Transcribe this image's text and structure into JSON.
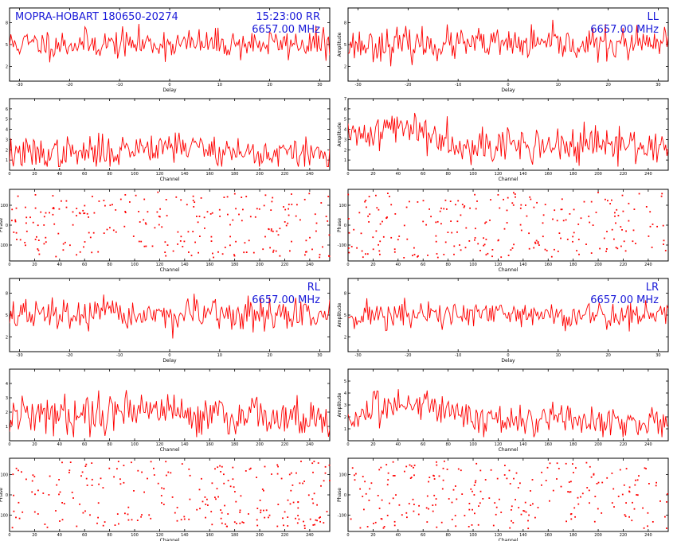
{
  "colors": {
    "trace": "#ff0000",
    "text_blue": "#1a1ad8",
    "frame": "#000000",
    "background": "#ffffff"
  },
  "chart_data": [
    {
      "id": "rr-delay",
      "type": "line",
      "pol": "RR",
      "kind": "delay",
      "title_left": "MOPRA-HOBART 180650-20274",
      "time": "15:23:00",
      "freq": "6657.00 MHz",
      "xlabel": "Delay",
      "ylabel": "",
      "xlim": [
        -32,
        32
      ],
      "ylim": [
        0,
        10
      ],
      "yticks": [
        2,
        5,
        8
      ],
      "xticks": [
        -30,
        -20,
        -10,
        0,
        10,
        20,
        30
      ],
      "x": [
        -32,
        32
      ],
      "y": [
        5.1,
        4.9
      ],
      "n_points": 256,
      "baseline": 5.1,
      "noise": 1.0,
      "seed": 11
    },
    {
      "id": "ll-delay",
      "type": "line",
      "pol": "LL",
      "kind": "delay",
      "title_left": "",
      "time": "",
      "freq": "6657.00 MHz",
      "xlabel": "Delay",
      "ylabel": "Amplitude",
      "xlim": [
        -32,
        32
      ],
      "ylim": [
        0,
        10
      ],
      "yticks": [
        2,
        5,
        8
      ],
      "xticks": [
        -30,
        -20,
        -10,
        0,
        10,
        20,
        30
      ],
      "x": [
        -32,
        32
      ],
      "y": [
        5.0,
        5.2
      ],
      "n_points": 256,
      "baseline": 5.0,
      "noise": 1.1,
      "seed": 23
    },
    {
      "id": "rr-channel",
      "type": "line",
      "pol": "RR",
      "kind": "channel",
      "xlabel": "Channel",
      "ylabel": "",
      "xlim": [
        0,
        256
      ],
      "ylim": [
        0,
        7
      ],
      "yticks": [
        1,
        2,
        3,
        4,
        5,
        6
      ],
      "xticks": [
        0,
        20,
        40,
        60,
        80,
        100,
        120,
        140,
        160,
        180,
        200,
        220,
        240
      ],
      "x": [
        0,
        256
      ],
      "y": [
        1.6,
        1.5
      ],
      "n_points": 256,
      "baseline": 1.6,
      "noise": 0.8,
      "bump_at": 128,
      "bump_height": 0.9,
      "seed": 37
    },
    {
      "id": "ll-channel",
      "type": "line",
      "pol": "LL",
      "kind": "channel",
      "xlabel": "Channel",
      "ylabel": "Amplitude",
      "xlim": [
        0,
        256
      ],
      "ylim": [
        0,
        7
      ],
      "yticks": [
        1,
        2,
        3,
        4,
        5,
        6,
        7
      ],
      "xticks": [
        0,
        20,
        40,
        60,
        80,
        100,
        120,
        140,
        160,
        180,
        200,
        220,
        240
      ],
      "x": [
        0,
        256
      ],
      "y": [
        3.2,
        2.0
      ],
      "n_points": 256,
      "baseline": 2.4,
      "noise": 0.9,
      "bump_at": 40,
      "bump_height": 1.8,
      "seed": 41
    },
    {
      "id": "rr-phase",
      "type": "scatter",
      "pol": "RR",
      "kind": "phase",
      "xlabel": "Channel",
      "ylabel": "Phase",
      "xlim": [
        0,
        256
      ],
      "ylim": [
        -180,
        180
      ],
      "yticks": [
        -100,
        0,
        100
      ],
      "xticks": [
        0,
        20,
        40,
        60,
        80,
        100,
        120,
        140,
        160,
        180,
        200,
        220,
        240
      ],
      "x": [
        0,
        256
      ],
      "y": [
        0,
        0
      ],
      "n_points": 240,
      "seed": 53
    },
    {
      "id": "ll-phase",
      "type": "scatter",
      "pol": "LL",
      "kind": "phase",
      "xlabel": "Channel",
      "ylabel": "Phase",
      "xlim": [
        0,
        256
      ],
      "ylim": [
        -180,
        180
      ],
      "yticks": [
        -100,
        0,
        100
      ],
      "xticks": [
        0,
        20,
        40,
        60,
        80,
        100,
        120,
        140,
        160,
        180,
        200,
        220,
        240
      ],
      "x": [
        0,
        256
      ],
      "y": [
        0,
        0
      ],
      "n_points": 240,
      "seed": 59
    },
    {
      "id": "rl-delay",
      "type": "line",
      "pol": "RL",
      "kind": "delay",
      "title_left": "",
      "time": "",
      "freq": "6657.00 MHz",
      "xlabel": "Delay",
      "ylabel": "",
      "xlim": [
        -32,
        32
      ],
      "ylim": [
        0,
        10
      ],
      "yticks": [
        2,
        5,
        8
      ],
      "xticks": [
        -30,
        -20,
        -10,
        0,
        10,
        20,
        30
      ],
      "x": [
        -32,
        32
      ],
      "y": [
        5.0,
        5.0
      ],
      "n_points": 256,
      "baseline": 5.0,
      "noise": 1.1,
      "seed": 67
    },
    {
      "id": "lr-delay",
      "type": "line",
      "pol": "LR",
      "kind": "delay",
      "title_left": "",
      "time": "",
      "freq": "6657.00 MHz",
      "xlabel": "Delay",
      "ylabel": "Amplitude",
      "xlim": [
        -32,
        32
      ],
      "ylim": [
        0,
        10
      ],
      "yticks": [
        2,
        5,
        8
      ],
      "xticks": [
        -30,
        -20,
        -10,
        0,
        10,
        20,
        30
      ],
      "x": [
        -32,
        32
      ],
      "y": [
        5.0,
        5.0
      ],
      "n_points": 256,
      "baseline": 5.0,
      "noise": 1.0,
      "seed": 71
    },
    {
      "id": "rl-channel",
      "type": "line",
      "pol": "RL",
      "kind": "channel",
      "xlabel": "Channel",
      "ylabel": "",
      "xlim": [
        0,
        256
      ],
      "ylim": [
        0,
        5
      ],
      "yticks": [
        1,
        2,
        3,
        4
      ],
      "xticks": [
        0,
        20,
        40,
        60,
        80,
        100,
        120,
        140,
        160,
        180,
        200,
        220,
        240
      ],
      "x": [
        0,
        256
      ],
      "y": [
        1.6,
        1.4
      ],
      "n_points": 256,
      "baseline": 1.7,
      "noise": 0.7,
      "bump_at": 100,
      "bump_height": 0.6,
      "seed": 79
    },
    {
      "id": "lr-channel",
      "type": "line",
      "pol": "LR",
      "kind": "channel",
      "xlabel": "Channel",
      "ylabel": "Amplitude",
      "xlim": [
        0,
        256
      ],
      "ylim": [
        0,
        6
      ],
      "yticks": [
        1,
        2,
        3,
        4,
        5
      ],
      "xticks": [
        0,
        20,
        40,
        60,
        80,
        100,
        120,
        140,
        160,
        180,
        200,
        220,
        240
      ],
      "x": [
        0,
        256
      ],
      "y": [
        1.4,
        1.3
      ],
      "n_points": 256,
      "baseline": 1.6,
      "noise": 0.7,
      "bump_at": 55,
      "bump_height": 1.6,
      "seed": 83
    },
    {
      "id": "rl-phase",
      "type": "scatter",
      "pol": "RL",
      "kind": "phase",
      "xlabel": "Channel",
      "ylabel": "Phase",
      "xlim": [
        0,
        256
      ],
      "ylim": [
        -180,
        180
      ],
      "yticks": [
        -100,
        0,
        100
      ],
      "xticks": [
        0,
        20,
        40,
        60,
        80,
        100,
        120,
        140,
        160,
        180,
        200,
        220,
        240
      ],
      "x": [
        0,
        256
      ],
      "y": [
        0,
        0
      ],
      "n_points": 240,
      "seed": 97
    },
    {
      "id": "lr-phase",
      "type": "scatter",
      "pol": "LR",
      "kind": "phase",
      "xlabel": "Channel",
      "ylabel": "Phase",
      "xlim": [
        0,
        256
      ],
      "ylim": [
        -180,
        180
      ],
      "yticks": [
        -100,
        0,
        100
      ],
      "xticks": [
        0,
        20,
        40,
        60,
        80,
        100,
        120,
        140,
        160,
        180,
        200,
        220,
        240
      ],
      "x": [
        0,
        256
      ],
      "y": [
        0,
        0
      ],
      "n_points": 240,
      "seed": 101
    }
  ]
}
